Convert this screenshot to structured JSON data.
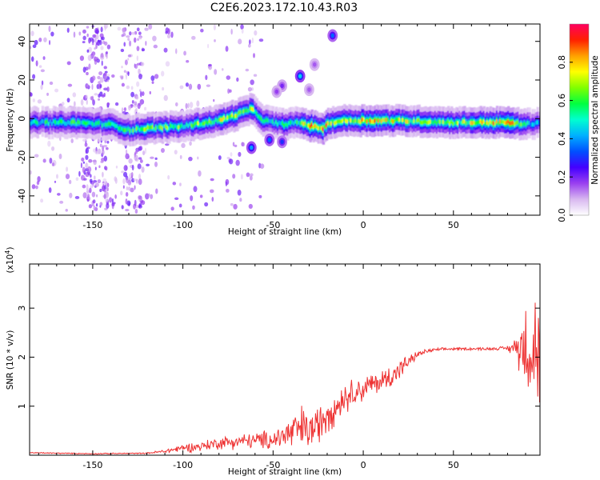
{
  "figure": {
    "title": "C2E6.2023.172.10.43.R03"
  },
  "chart_data": [
    {
      "type": "heatmap",
      "xlabel": "Height of straight line (km)",
      "ylabel": "Frequency (Hz)",
      "xlim": [
        -185,
        98
      ],
      "ylim": [
        -50,
        49
      ],
      "xticks": [
        -150,
        -100,
        -50,
        0,
        50
      ],
      "yticks": [
        -40,
        -20,
        0,
        20,
        40
      ],
      "grid": false,
      "colorbar": {
        "label": "Normalized spectral amplitude",
        "range": [
          0,
          1
        ],
        "ticks": [
          "0.0",
          "0.2",
          "0.4",
          "0.6",
          "0.8"
        ],
        "colors": [
          "#ffffff",
          "#d8b8f0",
          "#9a40f0",
          "#4400ff",
          "#0050ff",
          "#00b0ff",
          "#00ffd0",
          "#00ff40",
          "#80ff00",
          "#ffff00",
          "#ffa000",
          "#ff2000",
          "#ff0060"
        ]
      },
      "ridge": {
        "description_points_x": [
          -185,
          -160,
          -140,
          -130,
          -120,
          -100,
          -80,
          -70,
          -62,
          -55,
          -45,
          -35,
          -28,
          -22,
          -18,
          -10,
          0,
          20,
          50,
          80,
          90,
          98
        ],
        "frequency_hz": [
          -2,
          -2,
          -3,
          -6,
          -5,
          -4,
          -1,
          2,
          5,
          -1,
          -3,
          -2,
          -4,
          -5,
          -2,
          -1,
          -1,
          -1,
          -2,
          -2,
          -3,
          -2
        ],
        "peak_amplitude": [
          0.5,
          0.55,
          0.5,
          0.6,
          0.6,
          0.6,
          0.65,
          0.7,
          0.65,
          0.5,
          0.55,
          0.6,
          0.8,
          0.85,
          0.75,
          0.7,
          0.8,
          0.7,
          0.6,
          0.85,
          0.5,
          0.4
        ]
      },
      "blobs": [
        {
          "x": -35,
          "y": 22,
          "amplitude": 0.4
        },
        {
          "x": -27,
          "y": 28,
          "amplitude": 0.1
        },
        {
          "x": -30,
          "y": 15,
          "amplitude": 0.1
        },
        {
          "x": -45,
          "y": 17,
          "amplitude": 0.15
        },
        {
          "x": -48,
          "y": 14,
          "amplitude": 0.12
        },
        {
          "x": -17,
          "y": 43,
          "amplitude": 0.3
        },
        {
          "x": -62,
          "y": -15,
          "amplitude": 0.35
        },
        {
          "x": -52,
          "y": -11,
          "amplitude": 0.3
        },
        {
          "x": -45,
          "y": -12,
          "amplitude": 0.25
        }
      ]
    },
    {
      "type": "line",
      "xlabel": "Height of straight line (km)",
      "ylabel": "SNR (10 * v/v)",
      "yscale_label": "(x10",
      "yscale_exp": "4",
      "yscale_close": ")",
      "xlim": [
        -185,
        98
      ],
      "ylim": [
        0,
        3.9
      ],
      "xticks": [
        -150,
        -100,
        -50,
        0,
        50
      ],
      "yticks": [
        1,
        2,
        3
      ],
      "grid": false,
      "series": [
        {
          "color": "#ee3333",
          "trend": {
            "x": [
              -185,
              -150,
              -120,
              -110,
              -100,
              -90,
              -80,
              -70,
              -60,
              -50,
              -40,
              -35,
              -30,
              -25,
              -20,
              -15,
              -10,
              -5,
              0,
              5,
              10,
              15,
              20,
              25,
              30,
              35,
              40,
              50,
              60,
              70,
              75,
              80,
              85,
              90,
              95,
              98
            ],
            "y": [
              0.05,
              0.03,
              0.04,
              0.08,
              0.15,
              0.18,
              0.25,
              0.28,
              0.3,
              0.32,
              0.45,
              0.55,
              0.5,
              0.6,
              0.9,
              1.0,
              1.2,
              1.3,
              1.35,
              1.45,
              1.5,
              1.6,
              1.75,
              1.9,
              2.05,
              2.12,
              2.15,
              2.17,
              2.17,
              2.17,
              2.18,
              2.18,
              2.2,
              2.3,
              2.2,
              2.0
            ],
            "noise": [
              0.01,
              0.01,
              0.01,
              0.04,
              0.08,
              0.1,
              0.12,
              0.14,
              0.15,
              0.2,
              0.35,
              0.45,
              0.4,
              0.35,
              0.45,
              0.3,
              0.3,
              0.25,
              0.25,
              0.22,
              0.22,
              0.25,
              0.2,
              0.12,
              0.06,
              0.04,
              0.03,
              0.03,
              0.03,
              0.03,
              0.03,
              0.05,
              0.25,
              0.9,
              1.1,
              1.0
            ]
          }
        }
      ]
    }
  ]
}
